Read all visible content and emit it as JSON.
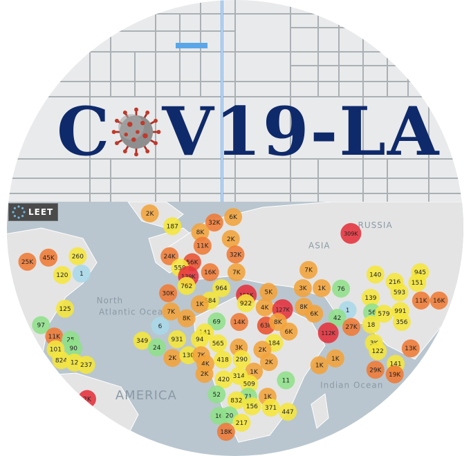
{
  "logo": {
    "title_prefix": "C",
    "title_suffix": "V19-LA",
    "badge_text": "LEET",
    "colors": {
      "title": "#0f2a6b",
      "ocean": "#b9c6cf",
      "land": "#e9eaeb",
      "roads": "#9ba2a6"
    }
  },
  "map": {
    "region_labels": [
      {
        "text": "North",
        "lx": 0.205,
        "ly": 0.665
      },
      {
        "text": "Atlantic Ocean",
        "lx": 0.21,
        "ly": 0.69
      },
      {
        "text": "Indian Ocean",
        "lx": 0.68,
        "ly": 0.851
      },
      {
        "text": "ASIA",
        "lx": 0.655,
        "ly": 0.545
      },
      {
        "text": "AMERICA",
        "lx": 0.245,
        "ly": 0.876
      },
      {
        "text": "RUSSIA",
        "lx": 0.76,
        "ly": 0.5
      }
    ],
    "markers": [
      {
        "label": "2K",
        "lx": 0.318,
        "ly": 0.468,
        "c": "#f2a33a"
      },
      {
        "label": "187",
        "lx": 0.366,
        "ly": 0.496,
        "c": "#f5e63b"
      },
      {
        "label": "32K",
        "lx": 0.455,
        "ly": 0.488,
        "c": "#ef7a34"
      },
      {
        "label": "6K",
        "lx": 0.495,
        "ly": 0.476,
        "c": "#f2a33a"
      },
      {
        "label": "8K",
        "lx": 0.425,
        "ly": 0.509,
        "c": "#f2a33a"
      },
      {
        "label": "309K",
        "lx": 0.745,
        "ly": 0.512,
        "c": "#e5313b"
      },
      {
        "label": "2K",
        "lx": 0.49,
        "ly": 0.524,
        "c": "#f2a33a"
      },
      {
        "label": "11K",
        "lx": 0.43,
        "ly": 0.539,
        "c": "#ef7a34"
      },
      {
        "label": "24K",
        "lx": 0.36,
        "ly": 0.562,
        "c": "#ef7a34"
      },
      {
        "label": "32K",
        "lx": 0.5,
        "ly": 0.558,
        "c": "#ef7a34"
      },
      {
        "label": "56K",
        "lx": 0.408,
        "ly": 0.575,
        "c": "#e9512f"
      },
      {
        "label": "559",
        "lx": 0.382,
        "ly": 0.587,
        "c": "#f5e63b"
      },
      {
        "label": "25K",
        "lx": 0.058,
        "ly": 0.574,
        "c": "#ef7a34"
      },
      {
        "label": "45K",
        "lx": 0.103,
        "ly": 0.565,
        "c": "#ef7a34"
      },
      {
        "label": "260",
        "lx": 0.165,
        "ly": 0.562,
        "c": "#f5e63b"
      },
      {
        "label": "120",
        "lx": 0.132,
        "ly": 0.603,
        "c": "#f5e63b"
      },
      {
        "label": "1",
        "lx": 0.173,
        "ly": 0.6,
        "c": "#a8d8e8"
      },
      {
        "label": "16K",
        "lx": 0.446,
        "ly": 0.597,
        "c": "#ef7a34"
      },
      {
        "label": "7K",
        "lx": 0.502,
        "ly": 0.597,
        "c": "#f2a33a"
      },
      {
        "label": "139K",
        "lx": 0.4,
        "ly": 0.606,
        "c": "#e5313b"
      },
      {
        "label": "762",
        "lx": 0.396,
        "ly": 0.627,
        "c": "#f5e63b"
      },
      {
        "label": "964",
        "lx": 0.47,
        "ly": 0.632,
        "c": "#f5e63b"
      },
      {
        "label": "7K",
        "lx": 0.655,
        "ly": 0.592,
        "c": "#f2a33a"
      },
      {
        "label": "140",
        "lx": 0.797,
        "ly": 0.602,
        "c": "#f5e63b"
      },
      {
        "label": "945",
        "lx": 0.892,
        "ly": 0.597,
        "c": "#f5e63b"
      },
      {
        "label": "216",
        "lx": 0.838,
        "ly": 0.618,
        "c": "#f5e63b"
      },
      {
        "label": "151",
        "lx": 0.886,
        "ly": 0.62,
        "c": "#f5e63b"
      },
      {
        "label": "30K",
        "lx": 0.357,
        "ly": 0.643,
        "c": "#ef7a34"
      },
      {
        "label": "3K",
        "lx": 0.643,
        "ly": 0.632,
        "c": "#f2a33a"
      },
      {
        "label": "1K",
        "lx": 0.683,
        "ly": 0.632,
        "c": "#f2a33a"
      },
      {
        "label": "76",
        "lx": 0.724,
        "ly": 0.633,
        "c": "#8fe08a"
      },
      {
        "label": "5K",
        "lx": 0.57,
        "ly": 0.64,
        "c": "#f2a33a"
      },
      {
        "label": "151K",
        "lx": 0.523,
        "ly": 0.647,
        "c": "#e5313b"
      },
      {
        "label": "593",
        "lx": 0.848,
        "ly": 0.641,
        "c": "#f5e63b"
      },
      {
        "label": "139",
        "lx": 0.787,
        "ly": 0.653,
        "c": "#f5e63b"
      },
      {
        "label": "584",
        "lx": 0.446,
        "ly": 0.659,
        "c": "#f5e63b"
      },
      {
        "label": "1K",
        "lx": 0.424,
        "ly": 0.667,
        "c": "#f2a33a"
      },
      {
        "label": "922",
        "lx": 0.522,
        "ly": 0.665,
        "c": "#f5e63b"
      },
      {
        "label": "11K",
        "lx": 0.894,
        "ly": 0.659,
        "c": "#ef7a34"
      },
      {
        "label": "16K",
        "lx": 0.932,
        "ly": 0.659,
        "c": "#ef7a34"
      },
      {
        "label": "125",
        "lx": 0.138,
        "ly": 0.677,
        "c": "#f5e63b"
      },
      {
        "label": "8K",
        "lx": 0.645,
        "ly": 0.673,
        "c": "#f2a33a"
      },
      {
        "label": "4K",
        "lx": 0.562,
        "ly": 0.674,
        "c": "#f2a33a"
      },
      {
        "label": "127K",
        "lx": 0.6,
        "ly": 0.679,
        "c": "#e5313b"
      },
      {
        "label": "991",
        "lx": 0.85,
        "ly": 0.682,
        "c": "#f5e63b"
      },
      {
        "label": "56",
        "lx": 0.79,
        "ly": 0.685,
        "c": "#8fe08a"
      },
      {
        "label": "579",
        "lx": 0.815,
        "ly": 0.688,
        "c": "#f5e63b"
      },
      {
        "label": "7K",
        "lx": 0.363,
        "ly": 0.683,
        "c": "#f2a33a"
      },
      {
        "label": "1",
        "lx": 0.738,
        "ly": 0.68,
        "c": "#a8d8e8"
      },
      {
        "label": "6K",
        "lx": 0.667,
        "ly": 0.688,
        "c": "#f2a33a"
      },
      {
        "label": "8K",
        "lx": 0.396,
        "ly": 0.698,
        "c": "#f2a33a"
      },
      {
        "label": "69",
        "lx": 0.46,
        "ly": 0.705,
        "c": "#8fe08a"
      },
      {
        "label": "14K",
        "lx": 0.508,
        "ly": 0.706,
        "c": "#ef7a34"
      },
      {
        "label": "63K",
        "lx": 0.565,
        "ly": 0.714,
        "c": "#e9512f"
      },
      {
        "label": "8K",
        "lx": 0.59,
        "ly": 0.706,
        "c": "#f2a33a"
      },
      {
        "label": "42",
        "lx": 0.716,
        "ly": 0.697,
        "c": "#8fe08a"
      },
      {
        "label": "356",
        "lx": 0.853,
        "ly": 0.706,
        "c": "#f5e63b"
      },
      {
        "label": "18",
        "lx": 0.788,
        "ly": 0.712,
        "c": "#f5e63b"
      },
      {
        "label": "27K",
        "lx": 0.746,
        "ly": 0.717,
        "c": "#ef7a34"
      },
      {
        "label": "6",
        "lx": 0.34,
        "ly": 0.715,
        "c": "#a8d8e8"
      },
      {
        "label": "97",
        "lx": 0.087,
        "ly": 0.713,
        "c": "#8fe08a"
      },
      {
        "label": "112K",
        "lx": 0.697,
        "ly": 0.73,
        "c": "#e5313b"
      },
      {
        "label": "6K",
        "lx": 0.613,
        "ly": 0.727,
        "c": "#f2a33a"
      },
      {
        "label": "11K",
        "lx": 0.115,
        "ly": 0.738,
        "c": "#ef7a34"
      },
      {
        "label": "141",
        "lx": 0.435,
        "ly": 0.729,
        "c": "#f5e63b"
      },
      {
        "label": "349",
        "lx": 0.302,
        "ly": 0.747,
        "c": "#f5e63b"
      },
      {
        "label": "931",
        "lx": 0.376,
        "ly": 0.744,
        "c": "#f5e63b"
      },
      {
        "label": "94",
        "lx": 0.424,
        "ly": 0.744,
        "c": "#f5e63b"
      },
      {
        "label": "25",
        "lx": 0.15,
        "ly": 0.745,
        "c": "#8fe08a"
      },
      {
        "label": "565",
        "lx": 0.463,
        "ly": 0.753,
        "c": "#f5e63b"
      },
      {
        "label": "3K",
        "lx": 0.507,
        "ly": 0.762,
        "c": "#f2a33a"
      },
      {
        "label": "184",
        "lx": 0.582,
        "ly": 0.752,
        "c": "#f5e63b"
      },
      {
        "label": "2K",
        "lx": 0.557,
        "ly": 0.767,
        "c": "#f2a33a"
      },
      {
        "label": "3K",
        "lx": 0.794,
        "ly": 0.752,
        "c": "#f5e63b"
      },
      {
        "label": "13K",
        "lx": 0.872,
        "ly": 0.764,
        "c": "#ef7a34"
      },
      {
        "label": "122",
        "lx": 0.802,
        "ly": 0.77,
        "c": "#f5e63b"
      },
      {
        "label": "24",
        "lx": 0.333,
        "ly": 0.762,
        "c": "#8fe08a"
      },
      {
        "label": "101",
        "lx": 0.118,
        "ly": 0.766,
        "c": "#f5e63b"
      },
      {
        "label": "90",
        "lx": 0.156,
        "ly": 0.764,
        "c": "#8fe08a"
      },
      {
        "label": "2K",
        "lx": 0.366,
        "ly": 0.785,
        "c": "#f2a33a"
      },
      {
        "label": "130",
        "lx": 0.4,
        "ly": 0.779,
        "c": "#f5e63b"
      },
      {
        "label": "7K",
        "lx": 0.427,
        "ly": 0.779,
        "c": "#f2a33a"
      },
      {
        "label": "418",
        "lx": 0.473,
        "ly": 0.789,
        "c": "#f5e63b"
      },
      {
        "label": "290",
        "lx": 0.513,
        "ly": 0.788,
        "c": "#f5e63b"
      },
      {
        "label": "1K",
        "lx": 0.712,
        "ly": 0.786,
        "c": "#f2a33a"
      },
      {
        "label": "1K",
        "lx": 0.678,
        "ly": 0.801,
        "c": "#f2a33a"
      },
      {
        "label": "824",
        "lx": 0.13,
        "ly": 0.79,
        "c": "#f5e63b"
      },
      {
        "label": "12",
        "lx": 0.158,
        "ly": 0.795,
        "c": "#f5e63b"
      },
      {
        "label": "237",
        "lx": 0.183,
        "ly": 0.8,
        "c": "#f5e63b"
      },
      {
        "label": "2K",
        "lx": 0.571,
        "ly": 0.794,
        "c": "#f2a33a"
      },
      {
        "label": "4K",
        "lx": 0.436,
        "ly": 0.798,
        "c": "#f2a33a"
      },
      {
        "label": "2K",
        "lx": 0.434,
        "ly": 0.82,
        "c": "#f2a33a"
      },
      {
        "label": "141",
        "lx": 0.84,
        "ly": 0.798,
        "c": "#f5e63b"
      },
      {
        "label": "29K",
        "lx": 0.797,
        "ly": 0.811,
        "c": "#ef7a34"
      },
      {
        "label": "19K",
        "lx": 0.838,
        "ly": 0.821,
        "c": "#ef7a34"
      },
      {
        "label": "1K",
        "lx": 0.539,
        "ly": 0.815,
        "c": "#f2a33a"
      },
      {
        "label": "314",
        "lx": 0.507,
        "ly": 0.824,
        "c": "#f5e63b"
      },
      {
        "label": "420",
        "lx": 0.475,
        "ly": 0.832,
        "c": "#f5e63b"
      },
      {
        "label": "509",
        "lx": 0.529,
        "ly": 0.842,
        "c": "#f5e63b"
      },
      {
        "label": "11",
        "lx": 0.607,
        "ly": 0.834,
        "c": "#8fe08a"
      },
      {
        "label": "52",
        "lx": 0.46,
        "ly": 0.865,
        "c": "#8fe08a"
      },
      {
        "label": "71",
        "lx": 0.527,
        "ly": 0.87,
        "c": "#8fe08a"
      },
      {
        "label": "1K",
        "lx": 0.568,
        "ly": 0.87,
        "c": "#f2a33a"
      },
      {
        "label": "2K",
        "lx": 0.185,
        "ly": 0.875,
        "c": "#e5313b"
      },
      {
        "label": "832",
        "lx": 0.502,
        "ly": 0.878,
        "c": "#f5e63b"
      },
      {
        "label": "156",
        "lx": 0.535,
        "ly": 0.891,
        "c": "#f5e63b"
      },
      {
        "label": "371",
        "lx": 0.575,
        "ly": 0.894,
        "c": "#f5e63b"
      },
      {
        "label": "447",
        "lx": 0.611,
        "ly": 0.903,
        "c": "#f5e63b"
      },
      {
        "label": "16",
        "lx": 0.465,
        "ly": 0.912,
        "c": "#8fe08a"
      },
      {
        "label": "20",
        "lx": 0.487,
        "ly": 0.911,
        "c": "#8fe08a"
      },
      {
        "label": "217",
        "lx": 0.513,
        "ly": 0.927,
        "c": "#f5e63b"
      },
      {
        "label": "18K",
        "lx": 0.48,
        "ly": 0.947,
        "c": "#ef7a34"
      }
    ]
  }
}
